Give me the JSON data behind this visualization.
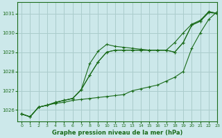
{
  "title": "Graphe pression niveau de la mer (hPa)",
  "bg_color": "#cce8ea",
  "grid_color": "#aacccc",
  "line_color": "#1a6b1a",
  "xlim": [
    -0.5,
    23
  ],
  "ylim": [
    1025.4,
    1031.6
  ],
  "yticks": [
    1026,
    1027,
    1028,
    1029,
    1030,
    1031
  ],
  "xticks": [
    0,
    1,
    2,
    3,
    4,
    5,
    6,
    7,
    8,
    9,
    10,
    11,
    12,
    13,
    14,
    15,
    16,
    17,
    18,
    19,
    20,
    21,
    22,
    23
  ],
  "series": [
    [
      1025.8,
      1025.65,
      1026.15,
      1026.25,
      1026.35,
      1026.4,
      1026.5,
      1026.55,
      1026.6,
      1026.65,
      1026.7,
      1026.75,
      1026.8,
      1027.0,
      1027.1,
      1027.2,
      1027.3,
      1027.5,
      1027.7,
      1028.0,
      1029.2,
      1030.0,
      1030.7,
      1031.1
    ],
    [
      1025.8,
      1025.65,
      1026.15,
      1026.25,
      1026.4,
      1026.5,
      1026.6,
      1027.05,
      1027.8,
      1028.5,
      1029.0,
      1029.1,
      1029.1,
      1029.1,
      1029.1,
      1029.1,
      1029.1,
      1029.1,
      1029.0,
      1029.5,
      1030.4,
      1030.6,
      1031.05,
      1031.0
    ],
    [
      1025.8,
      1025.65,
      1026.15,
      1026.25,
      1026.4,
      1026.5,
      1026.6,
      1027.05,
      1028.4,
      1029.05,
      1029.4,
      1029.3,
      1029.25,
      1029.2,
      1029.15,
      1029.1,
      1029.1,
      1029.1,
      1029.0,
      1029.5,
      1030.4,
      1030.6,
      1031.1,
      1031.0
    ],
    [
      1025.8,
      1025.65,
      1026.15,
      1026.25,
      1026.4,
      1026.5,
      1026.6,
      1027.05,
      1027.8,
      1028.5,
      1029.0,
      1029.1,
      1029.1,
      1029.1,
      1029.1,
      1029.1,
      1029.1,
      1029.1,
      1029.5,
      1030.0,
      1030.45,
      1030.65,
      1031.1,
      1031.0
    ]
  ]
}
